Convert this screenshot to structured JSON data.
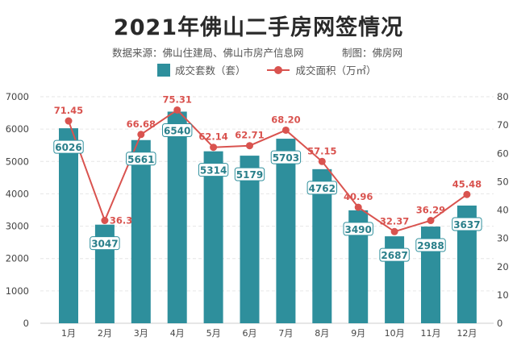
{
  "chart_data": {
    "type": "bar+line",
    "title": "2021年佛山二手房网签情况",
    "source": "数据来源：佛山住建局、佛山市房产信息网",
    "maker": "制图：佛房网",
    "categories": [
      "1月",
      "2月",
      "3月",
      "4月",
      "5月",
      "6月",
      "7月",
      "8月",
      "9月",
      "10月",
      "11月",
      "12月"
    ],
    "series": [
      {
        "name": "成交套数（套）",
        "type": "bar",
        "axis": "left",
        "color": "#2e8f9c",
        "values": [
          6026,
          3047,
          5661,
          6540,
          5314,
          5179,
          5703,
          4762,
          3490,
          2687,
          2988,
          3637
        ]
      },
      {
        "name": "成交面积（万㎡）",
        "type": "line",
        "axis": "right",
        "color": "#d9534f",
        "values": [
          71.45,
          36.3,
          66.68,
          75.31,
          62.14,
          62.71,
          68.2,
          57.15,
          40.96,
          32.37,
          36.29,
          45.48
        ],
        "labels": [
          "71.45",
          "36.3",
          "66.68",
          "75.31",
          "62.14",
          "62.71",
          "68.20",
          "57.15",
          "40.96",
          "32.37",
          "36.29",
          "45.48"
        ]
      }
    ],
    "ylim_left": [
      0,
      7000
    ],
    "yticks_left": [
      "0",
      "1000",
      "2000",
      "3000",
      "4000",
      "5000",
      "6000",
      "7000"
    ],
    "ylim_right": [
      0,
      80
    ],
    "yticks_right": [
      "0",
      "10",
      "20",
      "30",
      "40",
      "50",
      "60",
      "70",
      "80"
    ],
    "grid": true,
    "legend": "top-center",
    "watermark": "佛房网"
  }
}
